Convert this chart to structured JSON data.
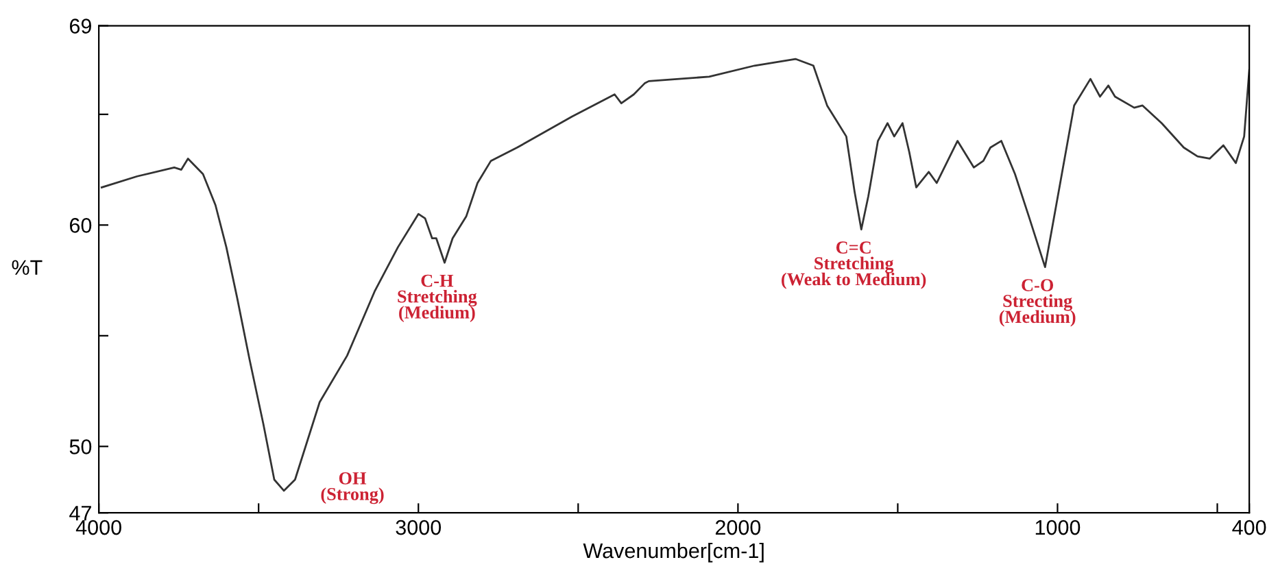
{
  "chart_data": {
    "type": "line",
    "xlabel": "Wavenumber[cm-1]",
    "ylabel": "%T",
    "xlim": [
      4000,
      400
    ],
    "ylim": [
      47,
      69
    ],
    "xticks": [
      4000,
      {
        "value": 3500,
        "label": null
      },
      3000,
      {
        "value": 2500,
        "label": null
      },
      2000,
      {
        "value": 1500,
        "label": null
      },
      1000,
      {
        "value": 500,
        "label": null
      },
      400
    ],
    "yticks": [
      47,
      50,
      {
        "value": 55,
        "label": null
      },
      60,
      {
        "value": 65,
        "label": null
      },
      69
    ],
    "grid": false,
    "marker": "none",
    "line_style": "solid",
    "series": [
      {
        "color": "#333333",
        "x": [
          3991,
          3880,
          3764,
          3742,
          3721,
          3674,
          3635,
          3601,
          3567,
          3528,
          3485,
          3451,
          3421,
          3386,
          3309,
          3223,
          3137,
          3064,
          3000,
          2979,
          2957,
          2944,
          2918,
          2893,
          2850,
          2815,
          2773,
          2691,
          2519,
          2386,
          2365,
          2326,
          2292,
          2279,
          2090,
          1948,
          1820,
          1764,
          1721,
          1691,
          1661,
          1635,
          1614,
          1592,
          1562,
          1532,
          1511,
          1485,
          1464,
          1442,
          1403,
          1378,
          1313,
          1262,
          1232,
          1210,
          1176,
          1133,
          1090,
          1039,
          1004,
          948,
          897,
          867,
          841,
          820,
          760,
          734,
          674,
          605,
          562,
          524,
          481,
          442,
          416,
          400
        ],
        "values": [
          61.7,
          62.2,
          62.6,
          62.5,
          63.0,
          62.3,
          60.9,
          59.0,
          56.7,
          53.9,
          51.0,
          48.5,
          48.0,
          48.5,
          52.0,
          54.1,
          57.0,
          59.0,
          60.5,
          60.3,
          59.4,
          59.4,
          58.3,
          59.4,
          60.4,
          61.9,
          62.9,
          63.5,
          64.9,
          65.9,
          65.5,
          65.9,
          66.4,
          66.5,
          66.7,
          67.2,
          67.5,
          67.2,
          65.4,
          64.7,
          64.0,
          61.5,
          59.8,
          61.3,
          63.8,
          64.6,
          64.0,
          64.6,
          63.3,
          61.7,
          62.4,
          61.9,
          63.8,
          62.6,
          62.9,
          63.5,
          63.8,
          62.3,
          60.4,
          58.1,
          60.9,
          65.4,
          66.6,
          65.8,
          66.3,
          65.8,
          65.3,
          65.4,
          64.6,
          63.5,
          63.1,
          63.0,
          63.6,
          62.8,
          64.0,
          67.0
        ]
      }
    ],
    "annotations": [
      {
        "text": "OH\n(Strong)",
        "x": 3421,
        "y": 48.0
      },
      {
        "text": "C-H\nStretching\n(Medium)",
        "x": 2918,
        "y": 58.3
      },
      {
        "text": "C=C\nStretching\n(Weak to Medium)",
        "x": 1614,
        "y": 59.8
      },
      {
        "text": "C-O\nStrecting\n(Medium)",
        "x": 1039,
        "y": 58.1
      }
    ]
  }
}
